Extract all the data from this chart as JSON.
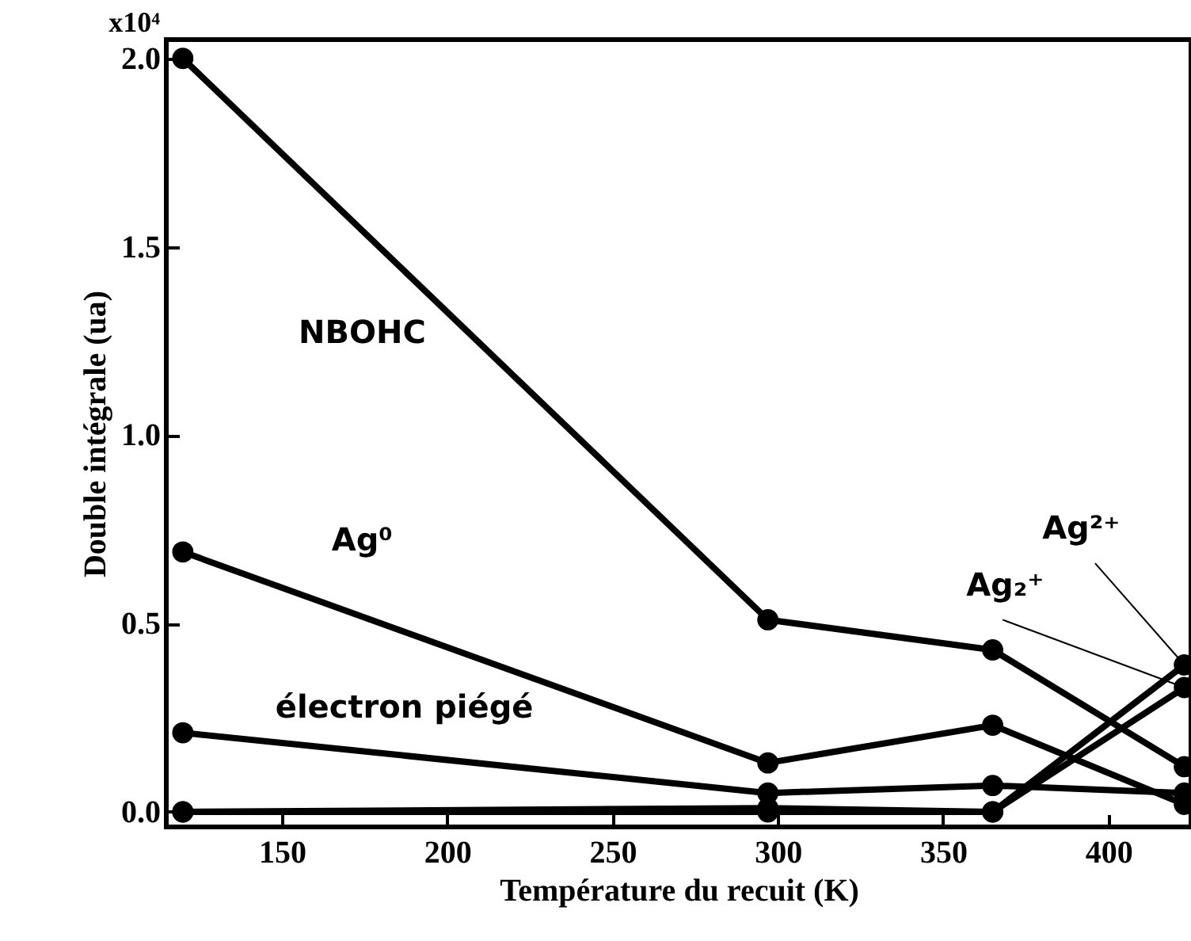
{
  "chart_data": {
    "type": "line",
    "xlabel": "Température du recuit (K)",
    "ylabel": "Double intégrale (ua)",
    "xlim": [
      115,
      425
    ],
    "xticks": [
      150,
      200,
      250,
      300,
      350,
      400
    ],
    "ylim": [
      -0.04,
      2.05
    ],
    "yticks": [
      {
        "value": 0,
        "label": "0.0"
      },
      {
        "value": 0.5,
        "label": "0.5"
      },
      {
        "value": 1,
        "label": "1.0"
      },
      {
        "value": 1.5,
        "label": "1.5"
      },
      {
        "value": 2,
        "label": "2.0"
      }
    ],
    "annotations": [
      "x10⁴"
    ],
    "grid": false,
    "marker": "circle",
    "line_style": "solid",
    "series": [
      {
        "name": "NBOHC",
        "color": "#000000",
        "x": [
          120,
          297,
          365,
          423
        ],
        "values": [
          2.0,
          0.51,
          0.43,
          0.12
        ]
      },
      {
        "name": "Ag⁰",
        "color": "#000000",
        "x": [
          120,
          297,
          365,
          423
        ],
        "values": [
          0.69,
          0.13,
          0.23,
          0.02
        ]
      },
      {
        "name": "électron piégé",
        "color": "#000000",
        "x": [
          120,
          297,
          365,
          423
        ],
        "values": [
          0.21,
          0.05,
          0.07,
          0.05
        ]
      },
      {
        "name": "Ag₂⁺",
        "color": "#000000",
        "x": [
          120,
          297,
          365,
          423
        ],
        "values": [
          0,
          0.01,
          0,
          0.33
        ]
      },
      {
        "name": "Ag²⁺",
        "color": "#000000",
        "x": [
          120,
          297,
          365,
          423
        ],
        "values": [
          0,
          0,
          0,
          0.39
        ]
      }
    ]
  }
}
